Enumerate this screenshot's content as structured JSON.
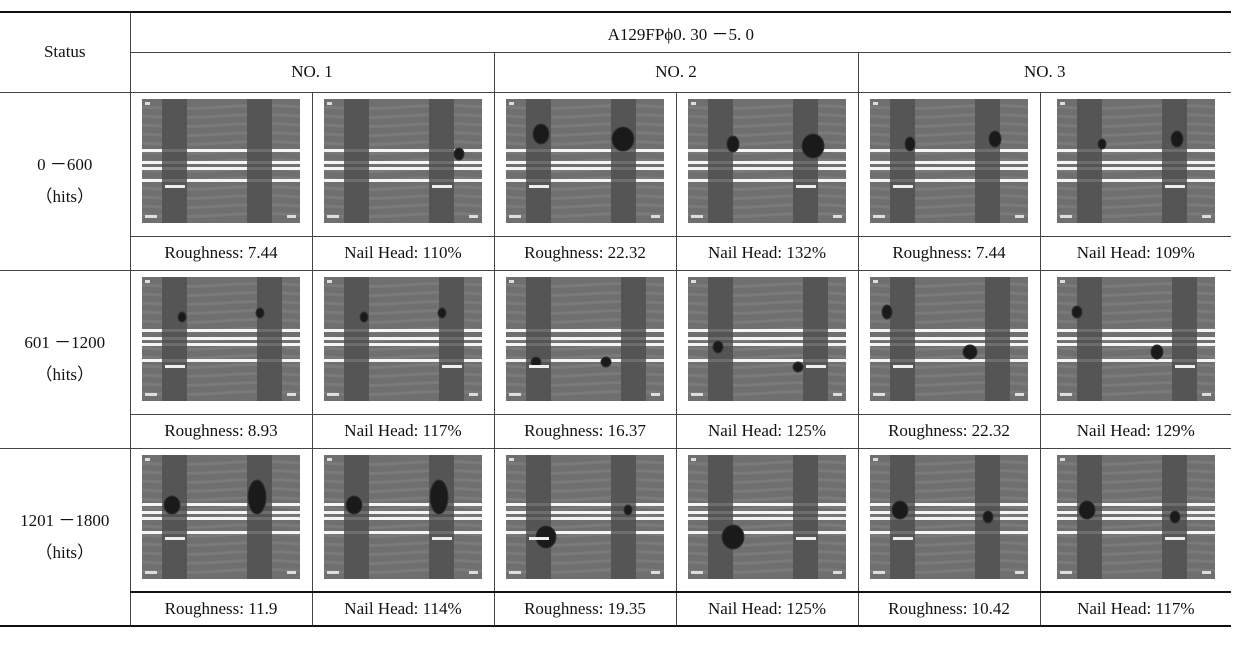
{
  "header": {
    "status_label": "Status",
    "material": "A129FPϕ0. 30 －5. 0",
    "groups": [
      "NO. 1",
      "NO. 2",
      "NO. 3"
    ]
  },
  "rows": [
    {
      "range": "0 －600",
      "unit": "（hits）",
      "labels": [
        "Roughness: 7.44",
        "Nail Head: 110%",
        "Roughness: 22.32",
        "Nail Head: 132%",
        "Roughness: 7.44",
        "Nail Head: 109%"
      ]
    },
    {
      "range": "601 －1200",
      "unit": "（hits）",
      "labels": [
        "Roughness: 8.93",
        "Nail Head: 117%",
        "Roughness: 16.37",
        "Nail Head: 125%",
        "Roughness: 22.32",
        "Nail Head: 129%"
      ]
    },
    {
      "range": "1201 －1800",
      "unit": "（hits）",
      "labels": [
        "Roughness: 11.9",
        "Nail Head: 114%",
        "Roughness: 19.35",
        "Nail Head: 125%",
        "Roughness: 10.42",
        "Nail Head: 117%"
      ]
    }
  ]
}
